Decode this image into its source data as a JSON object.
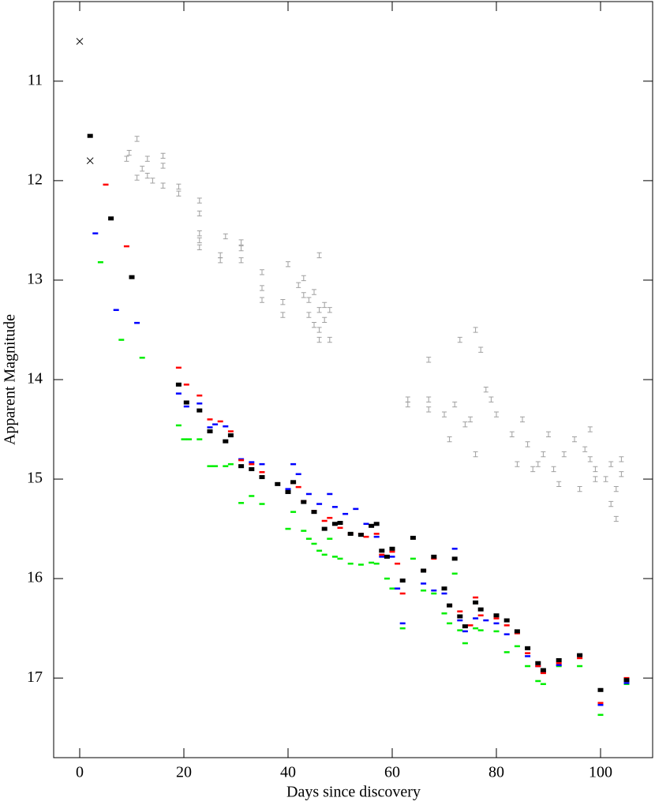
{
  "chart_data": {
    "type": "scatter",
    "xlabel": "Days since discovery",
    "ylabel": "Apparent Magnitude",
    "xlim": [
      -5,
      110
    ],
    "ylim": [
      17.8,
      10.2
    ],
    "xticks": [
      0,
      20,
      40,
      60,
      80,
      100
    ],
    "yticks": [
      11,
      12,
      13,
      14,
      15,
      16,
      17
    ],
    "series": [
      {
        "color": "#000000",
        "marker": "x",
        "x": [
          0,
          2
        ],
        "values": [
          10.6,
          11.8
        ]
      },
      {
        "color": "#000000",
        "marker": "dash",
        "error": 0.02,
        "x": [
          2,
          6,
          10,
          19,
          20.5,
          23,
          25,
          28,
          29,
          31,
          33,
          35,
          38,
          40,
          41,
          43,
          45,
          47,
          49,
          50,
          52,
          54,
          56,
          57,
          58,
          59,
          60,
          62,
          64,
          66,
          68,
          70,
          71,
          72,
          73,
          74,
          76,
          77,
          80,
          82,
          84,
          86,
          88,
          89,
          92,
          96,
          100,
          105
        ],
        "values": [
          11.55,
          12.38,
          12.97,
          14.05,
          14.23,
          14.31,
          14.52,
          14.62,
          14.56,
          14.87,
          14.9,
          14.98,
          15.05,
          15.13,
          15.03,
          15.23,
          15.33,
          15.5,
          15.45,
          15.44,
          15.55,
          15.56,
          15.47,
          15.45,
          15.72,
          15.78,
          15.7,
          16.02,
          15.59,
          15.92,
          15.78,
          16.1,
          16.27,
          15.8,
          16.38,
          16.48,
          16.24,
          16.31,
          16.37,
          16.42,
          16.53,
          16.7,
          16.85,
          16.92,
          16.82,
          16.77,
          17.12,
          17.02
        ]
      },
      {
        "color": "#ff0000",
        "marker": "dash",
        "error": 0.01,
        "x": [
          5,
          9,
          19,
          20.5,
          23,
          25,
          27,
          29,
          31,
          33,
          35,
          41,
          42,
          43,
          45,
          47,
          48,
          50,
          52,
          54,
          55,
          57,
          58,
          60,
          61,
          62,
          66,
          68,
          71,
          73,
          75,
          76,
          77,
          80,
          82,
          84,
          86,
          88,
          89,
          92,
          96,
          100,
          105
        ],
        "values": [
          12.04,
          12.66,
          13.88,
          14.05,
          14.16,
          14.4,
          14.42,
          14.52,
          14.81,
          14.85,
          14.93,
          15.04,
          15.08,
          15.22,
          15.32,
          15.42,
          15.39,
          15.49,
          15.55,
          15.55,
          15.58,
          15.55,
          15.76,
          15.73,
          15.85,
          16.15,
          15.92,
          15.8,
          16.27,
          16.33,
          16.47,
          16.19,
          16.37,
          16.4,
          16.47,
          16.55,
          16.75,
          16.88,
          16.95,
          16.85,
          16.8,
          17.25,
          17.0
        ]
      },
      {
        "color": "#0000ff",
        "marker": "dash",
        "error": 0.01,
        "x": [
          3,
          7,
          11,
          19,
          20.5,
          23,
          25,
          26,
          28,
          31,
          33,
          35,
          40,
          41,
          42,
          44,
          46,
          48,
          49,
          51,
          53,
          55,
          57,
          58,
          60,
          61,
          62,
          66,
          68,
          70,
          72,
          73,
          74,
          76,
          78,
          80,
          82,
          86,
          88,
          89,
          92,
          96,
          100,
          105
        ],
        "values": [
          12.53,
          13.3,
          13.43,
          14.14,
          14.27,
          14.24,
          14.48,
          14.45,
          14.47,
          14.8,
          14.83,
          14.85,
          15.1,
          14.85,
          14.95,
          15.15,
          15.25,
          15.15,
          15.28,
          15.35,
          15.3,
          15.45,
          15.58,
          15.78,
          15.78,
          16.1,
          16.45,
          16.05,
          16.12,
          16.15,
          15.7,
          16.42,
          16.53,
          16.4,
          16.42,
          16.45,
          16.56,
          16.78,
          16.88,
          16.94,
          16.87,
          16.77,
          17.27,
          17.05
        ]
      },
      {
        "color": "#00ee00",
        "marker": "dash",
        "error": 0.01,
        "x": [
          4,
          8,
          12,
          19,
          20,
          21,
          23,
          25,
          26,
          28,
          29,
          31,
          33,
          35,
          40,
          41,
          43,
          44,
          45,
          46,
          47,
          48,
          49,
          50,
          52,
          54,
          56,
          57,
          59,
          60,
          62,
          64,
          66,
          68,
          70,
          71,
          72,
          73,
          74,
          76,
          77,
          80,
          82,
          84,
          86,
          88,
          89,
          92,
          96,
          100,
          105
        ],
        "values": [
          12.82,
          13.6,
          13.78,
          14.46,
          14.6,
          14.6,
          14.6,
          14.87,
          14.87,
          14.87,
          14.85,
          15.24,
          15.17,
          15.25,
          15.5,
          15.33,
          15.52,
          15.6,
          15.65,
          15.72,
          15.76,
          15.6,
          15.78,
          15.8,
          15.85,
          15.86,
          15.84,
          15.85,
          16.0,
          16.1,
          16.5,
          15.8,
          16.12,
          16.15,
          16.35,
          16.45,
          15.95,
          16.52,
          16.65,
          16.5,
          16.52,
          16.53,
          16.74,
          16.68,
          16.88,
          17.03,
          17.06,
          16.88,
          16.88,
          17.37,
          17.06
        ]
      },
      {
        "color": "#a0a0a0",
        "marker": "errorbar",
        "error": 0.025,
        "x": [
          9,
          9.5,
          11,
          11,
          12,
          13,
          13,
          14,
          16,
          16,
          16,
          19,
          19,
          23,
          23,
          23,
          23,
          23,
          27,
          27,
          28,
          31,
          31,
          31,
          35,
          35,
          35,
          39,
          39,
          40,
          42,
          43,
          43,
          44,
          44,
          45,
          45,
          46,
          46,
          46,
          46,
          47,
          47,
          48,
          48,
          63,
          63,
          67,
          67,
          67,
          70,
          71,
          72,
          73,
          74,
          75,
          76,
          76,
          77,
          78,
          79,
          80,
          83,
          84,
          85,
          86,
          87,
          88,
          89,
          90,
          91,
          92,
          93,
          95,
          96,
          97,
          98,
          98,
          99,
          99,
          101,
          102,
          102,
          103,
          103,
          104,
          104
        ],
        "values": [
          11.78,
          11.72,
          11.58,
          11.97,
          11.88,
          11.78,
          11.95,
          12.0,
          11.75,
          11.85,
          12.05,
          12.06,
          12.13,
          12.2,
          12.33,
          12.53,
          12.6,
          12.67,
          12.75,
          12.8,
          12.56,
          12.62,
          12.68,
          12.8,
          12.92,
          13.08,
          13.2,
          13.22,
          13.35,
          12.84,
          13.05,
          12.98,
          13.15,
          13.2,
          13.35,
          13.45,
          13.12,
          12.75,
          13.3,
          13.5,
          13.6,
          13.4,
          13.25,
          13.6,
          13.3,
          14.2,
          14.25,
          13.8,
          14.2,
          14.3,
          14.35,
          14.6,
          14.25,
          13.6,
          14.45,
          14.4,
          13.5,
          14.75,
          13.7,
          14.1,
          14.2,
          14.35,
          14.55,
          14.85,
          14.4,
          14.65,
          14.9,
          14.85,
          14.75,
          14.55,
          14.9,
          15.05,
          14.75,
          14.6,
          15.1,
          14.7,
          14.5,
          14.8,
          15.0,
          14.9,
          15.0,
          15.25,
          14.85,
          15.1,
          15.4,
          14.95,
          14.8
        ]
      }
    ]
  }
}
